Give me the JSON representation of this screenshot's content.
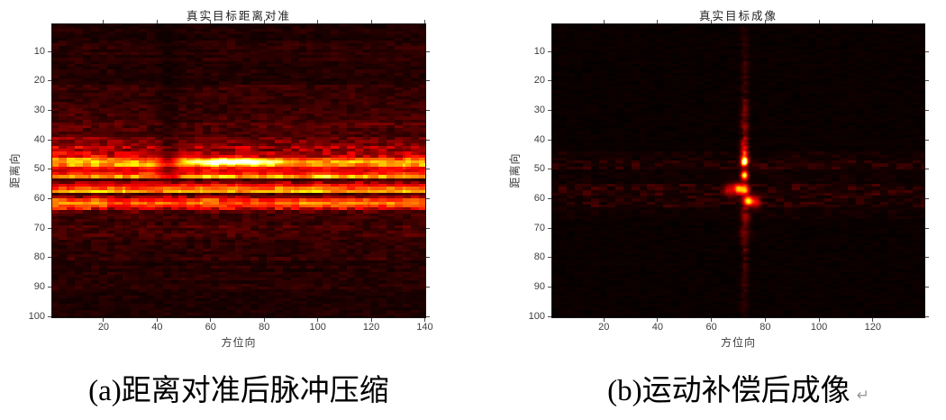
{
  "colors": {
    "background": "#ffffff",
    "axis_frame": "#141414",
    "tick_mark": "#4a4a4a",
    "tick_label": "#3d3d3d",
    "title_text": "#242424",
    "caption_text": "#000000",
    "paragraph_mark_color": "#9a9a9a",
    "colormap_low": "#000000",
    "colormap_mid": "#ff2a00",
    "colormap_high": "#ffe000",
    "colormap_peak": "#ffffff"
  },
  "figures": [
    {
      "key": "a",
      "title": "真实目标距离对准",
      "xlabel": "方位向",
      "ylabel": "距离向",
      "caption": "(a)距离对准后脉冲压缩",
      "caption_mark": "",
      "x_ticks": [
        20,
        40,
        60,
        80,
        100,
        120,
        140
      ],
      "y_ticks": [
        10,
        20,
        30,
        40,
        50,
        60,
        70,
        80,
        90,
        100
      ]
    },
    {
      "key": "b",
      "title": "真实目标成像",
      "xlabel": "方位向",
      "ylabel": "距离向",
      "caption": "(b)运动补偿后成像",
      "caption_mark": "↵",
      "x_ticks": [
        20,
        40,
        60,
        80,
        100,
        120
      ],
      "y_ticks": [
        10,
        20,
        30,
        40,
        50,
        60,
        70,
        80,
        90,
        100
      ]
    }
  ],
  "chart_data": [
    {
      "type": "heatmap",
      "panel": "a",
      "title": "真实目标距离对准",
      "xlabel": "方位向",
      "ylabel": "距离向",
      "x_range": [
        1,
        140
      ],
      "y_range": [
        1,
        100
      ],
      "x_ticks": [
        20,
        40,
        60,
        80,
        100,
        120,
        140
      ],
      "y_ticks": [
        10,
        20,
        30,
        40,
        50,
        60,
        70,
        80,
        90,
        100
      ],
      "colormap": "hot",
      "content_summary": "Range-aligned pulse-compressed data: bright horizontal streaks spanning all 140 azimuth bins at range bins ~44-63, brightest at rows 47-48, 52, 57 and 60-61, with a white-hot patch on rows 47-48 near azimuth 45-95; dim red noise elsewhere and a darker vertical smear near azimuth 40-48",
      "base_value": 0,
      "noise": {
        "seed": 7,
        "cell_cols": 3
      },
      "row_profile": [
        [
          1,
          5,
          0.045
        ],
        [
          6,
          12,
          0.06
        ],
        [
          13,
          20,
          0.05
        ],
        [
          21,
          28,
          0.07
        ],
        [
          29,
          33,
          0.09
        ],
        [
          34,
          38,
          0.11
        ],
        [
          39,
          41,
          0.16
        ],
        [
          42,
          42,
          0.22
        ],
        [
          43,
          43,
          0.26
        ],
        [
          44,
          45,
          0.3
        ],
        [
          46,
          46,
          0.5
        ],
        [
          47,
          47,
          0.64
        ],
        [
          48,
          48,
          0.62
        ],
        [
          49,
          49,
          0.38
        ],
        [
          50,
          50,
          0.34
        ],
        [
          51,
          51,
          0.42
        ],
        [
          52,
          52,
          0.66
        ],
        [
          53,
          53,
          0.13
        ],
        [
          54,
          54,
          0.2
        ],
        [
          55,
          55,
          0.38
        ],
        [
          56,
          56,
          0.5
        ],
        [
          57,
          57,
          0.63
        ],
        [
          58,
          58,
          0.1
        ],
        [
          59,
          59,
          0.25
        ],
        [
          60,
          60,
          0.45
        ],
        [
          61,
          61,
          0.55
        ],
        [
          62,
          62,
          0.45
        ],
        [
          63,
          63,
          0.28
        ],
        [
          64,
          64,
          0.15
        ],
        [
          65,
          66,
          0.11
        ],
        [
          67,
          72,
          0.09
        ],
        [
          73,
          80,
          0.07
        ],
        [
          81,
          90,
          0.055
        ],
        [
          91,
          100,
          0.042
        ]
      ],
      "white_patch": {
        "row_center": 47.4,
        "row_halfwidth": 1.3,
        "col_center": 68,
        "col_halfwidth": 26,
        "amp": 0.5
      },
      "dark_column": {
        "col_center": 44,
        "sigma2": 18,
        "depth": 0.45,
        "max_row": 52
      },
      "left_glow": {
        "amp": 0.22,
        "sigma2": 500,
        "row_min": 26,
        "row_max": 47
      }
    },
    {
      "type": "heatmap",
      "panel": "b",
      "title": "真实目标成像",
      "xlabel": "方位向",
      "ylabel": "距离向",
      "x_range": [
        1,
        139
      ],
      "y_range": [
        1,
        100
      ],
      "x_ticks": [
        20,
        40,
        60,
        80,
        100,
        120
      ],
      "y_ticks": [
        10,
        20,
        30,
        40,
        50,
        60,
        70,
        80,
        90,
        100
      ],
      "colormap": "hot",
      "content_summary": "Focused image after motion compensation: point scatterers concentrated near azimuth ~72 at range bins ~47-61 (white peak near (72,48), yellow peaks near (72,52), (70,57), (74,61)); faint vertical sidelobe streak along azimuth 72 and faint blotchy horizontal sidelobe bands at ranges ~47-62; black background elsewhere",
      "base_value": 0.012,
      "noise": {
        "seed": 11,
        "cell_cols": 3
      },
      "bands": [
        [
          44,
          46,
          0.018
        ],
        [
          47,
          49,
          0.04
        ],
        [
          50,
          54,
          0.01
        ],
        [
          55,
          58,
          0.05
        ],
        [
          59,
          62,
          0.04
        ],
        [
          63,
          66,
          0.012
        ]
      ],
      "vertical_streak": {
        "col_center": 72.4,
        "sigma2": 1.8,
        "strength_profile": [
          [
            1,
            12,
            0.04
          ],
          [
            13,
            25,
            0.06
          ],
          [
            26,
            38,
            0.1
          ],
          [
            39,
            46,
            0.16
          ],
          [
            47,
            55,
            0.18
          ],
          [
            56,
            66,
            0.14
          ],
          [
            67,
            78,
            0.1
          ],
          [
            79,
            90,
            0.07
          ],
          [
            91,
            100,
            0.05
          ]
        ]
      },
      "hotspots": [
        [
          72.3,
          47.6,
          0.85,
          0.8
        ],
        [
          72.3,
          46.4,
          0.35,
          1.0
        ],
        [
          72.3,
          52.0,
          0.65,
          0.9
        ],
        [
          70.0,
          56.6,
          0.6,
          1.2
        ],
        [
          72.6,
          56.9,
          0.45,
          1.1
        ],
        [
          66.8,
          57.0,
          0.28,
          1.3
        ],
        [
          73.8,
          60.8,
          0.68,
          1.1
        ],
        [
          76.5,
          61.3,
          0.3,
          1.3
        ],
        [
          72.2,
          44.0,
          0.28,
          0.9
        ],
        [
          72.2,
          41.0,
          0.16,
          1.0
        ],
        [
          72.4,
          35.0,
          0.1,
          1.1
        ],
        [
          72.4,
          30.0,
          0.07,
          1.2
        ],
        [
          73.0,
          66.5,
          0.12,
          1.3
        ],
        [
          72.5,
          72.0,
          0.08,
          1.6
        ]
      ]
    }
  ]
}
